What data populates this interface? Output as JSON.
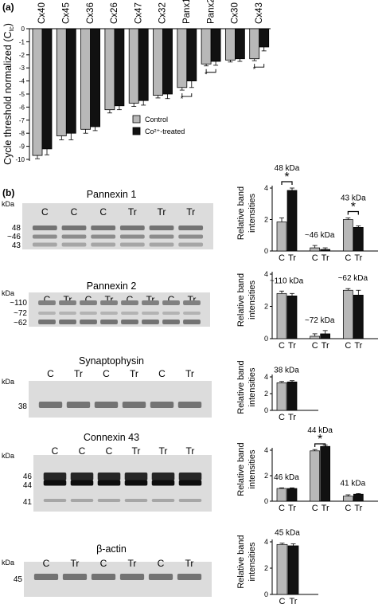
{
  "panel_a": {
    "label": "(a)",
    "ylabel": "Cycle threshold normalized (C",
    "ylabel_sub": "tc",
    "ylabel_close": ")",
    "legend": [
      {
        "label": "Control",
        "color": "#b8b8b8"
      },
      {
        "label": "Co²⁺-treated",
        "color": "#111111"
      }
    ]
  },
  "panel_b": {
    "label": "(b)",
    "kda": "kDa",
    "blots": [
      {
        "title": "Pannexin 1",
        "lanes": [
          "C",
          "C",
          "C",
          "Tr",
          "Tr",
          "Tr"
        ],
        "markers": [
          "48",
          "~46",
          "43"
        ]
      },
      {
        "title": "Pannexin 2",
        "lanes": [
          "C",
          "Tr",
          "C",
          "Tr",
          "C",
          "Tr",
          "C",
          "Tr"
        ],
        "markers": [
          "~110",
          "~72",
          "~62"
        ]
      },
      {
        "title": "Synaptophysin",
        "lanes": [
          "C",
          "Tr",
          "C",
          "Tr",
          "C",
          "Tr"
        ],
        "markers": [
          "38"
        ]
      },
      {
        "title": "Connexin 43",
        "lanes": [
          "C",
          "C",
          "C",
          "Tr",
          "Tr",
          "Tr"
        ],
        "markers": [
          "46",
          "44",
          "41"
        ]
      },
      {
        "title": "β-actin",
        "lanes": [
          "C",
          "Tr",
          "C",
          "Tr",
          "C",
          "Tr"
        ],
        "markers": [
          "45"
        ]
      }
    ],
    "rbi_ylabel": [
      "Relative band",
      "intensities"
    ],
    "cat_labels": [
      "C",
      "Tr"
    ]
  },
  "chart_data": [
    {
      "type": "bar",
      "categories": [
        "Cx40",
        "Cx45",
        "Cx36",
        "Cx26",
        "Cx47",
        "Cx32",
        "Panx1",
        "Panx2",
        "Cx30",
        "Cx43"
      ],
      "ylabel": "Cycle threshold normalized (Ctc)",
      "ylim": [
        -10,
        0
      ],
      "yticks": [
        0,
        -1,
        -2,
        -3,
        -4,
        -5,
        -6,
        -7,
        -8,
        -9,
        -10
      ],
      "series": [
        {
          "name": "Control",
          "color": "#b8b8b8",
          "values": [
            -9.7,
            -8.2,
            -7.7,
            -6.2,
            -5.7,
            -5.1,
            -4.5,
            -2.7,
            -2.4,
            -2.3
          ],
          "errors": [
            0.25,
            0.3,
            0.3,
            0.25,
            0.25,
            0.2,
            0.2,
            0.15,
            0.15,
            0.15
          ]
        },
        {
          "name": "Co²⁺-treated",
          "color": "#111111",
          "values": [
            -9.2,
            -8.0,
            -7.5,
            -5.9,
            -5.5,
            -5.0,
            -4.0,
            -2.5,
            -2.3,
            -1.4
          ],
          "errors": [
            0.45,
            0.5,
            0.3,
            0.3,
            0.35,
            0.35,
            0.5,
            0.3,
            0.2,
            0.3
          ]
        }
      ],
      "significance": [
        "Panx1",
        "Panx2",
        "Cx43"
      ]
    },
    {
      "type": "bar",
      "ylabel": "Relative band intensities",
      "ylim": [
        0,
        4
      ],
      "yticks": [
        0,
        2,
        4
      ],
      "groups": [
        {
          "label": "48 kDa",
          "values": [
            1.85,
            3.85
          ],
          "errors": [
            0.25,
            0.15
          ],
          "sig": true
        },
        {
          "label": "~46 kDa",
          "values": [
            0.2,
            0.1
          ],
          "errors": [
            0.15,
            0.1
          ],
          "sig": false
        },
        {
          "label": "43 kDa",
          "values": [
            2.0,
            1.5
          ],
          "errors": [
            0.1,
            0.1
          ],
          "sig": true
        }
      ]
    },
    {
      "type": "bar",
      "ylabel": "Relative band intensities",
      "ylim": [
        0,
        4
      ],
      "yticks": [
        0,
        2,
        4
      ],
      "groups": [
        {
          "label": "~110 kDa",
          "values": [
            2.8,
            2.65
          ],
          "errors": [
            0.15,
            0.15
          ],
          "sig": false
        },
        {
          "label": "~72 kDa",
          "values": [
            0.15,
            0.3
          ],
          "errors": [
            0.15,
            0.2
          ],
          "sig": false
        },
        {
          "label": "~62 kDa",
          "values": [
            3.0,
            2.7
          ],
          "errors": [
            0.1,
            0.3
          ],
          "sig": false
        }
      ]
    },
    {
      "type": "bar",
      "ylabel": "Relative band intensities",
      "ylim": [
        0,
        4
      ],
      "yticks": [
        0,
        2,
        4
      ],
      "groups": [
        {
          "label": "38 kDa",
          "values": [
            3.3,
            3.4
          ],
          "errors": [
            0.15,
            0.15
          ],
          "sig": false
        }
      ]
    },
    {
      "type": "bar",
      "ylabel": "Relative band intensities",
      "ylim": [
        0,
        4
      ],
      "yticks": [
        0,
        2,
        4
      ],
      "groups": [
        {
          "label": "46 kDa",
          "values": [
            1.0,
            1.0
          ],
          "errors": [
            0.05,
            0.05
          ],
          "sig": false
        },
        {
          "label": "44 kDa",
          "values": [
            3.95,
            4.3
          ],
          "errors": [
            0.1,
            0.1
          ],
          "sig": true
        },
        {
          "label": "41 kDa",
          "values": [
            0.4,
            0.55
          ],
          "errors": [
            0.1,
            0.05
          ],
          "sig": false
        }
      ]
    },
    {
      "type": "bar",
      "ylabel": "Relative band intensities",
      "ylim": [
        0,
        4
      ],
      "yticks": [
        0,
        2,
        4
      ],
      "groups": [
        {
          "label": "45 kDa",
          "values": [
            3.8,
            3.7
          ],
          "errors": [
            0.1,
            0.15
          ],
          "sig": false
        }
      ]
    }
  ]
}
